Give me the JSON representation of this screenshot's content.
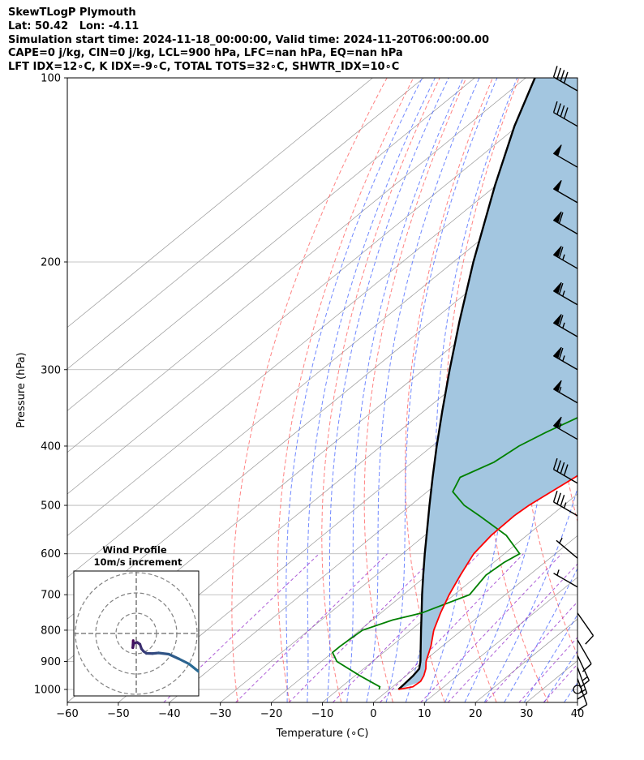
{
  "header": {
    "line1": "SkewTLogP Plymouth",
    "line2": "Lat: 50.42   Lon: -4.11",
    "line3": "Simulation start time: 2024-11-18_00:00:00, Valid time: 2024-11-20T06:00:00.00",
    "line4": "CAPE=0 j/kg, CIN=0 j/kg, LCL=900 hPa, LFC=nan hPa, EQ=nan hPa",
    "line5": "LFT IDX=12∘C, K IDX=-9∘C, TOTAL TOTS=32∘C, SHWTR_IDX=10∘C"
  },
  "chart_data": {
    "type": "line",
    "title": "SkewTLogP Plymouth",
    "xlabel": "Temperature (∘C)",
    "ylabel": "Pressure (hPa)",
    "xlim": [
      -60,
      40
    ],
    "ylim": [
      1050,
      100
    ],
    "yscale": "log",
    "x_ticks": [
      -60,
      -50,
      -40,
      -30,
      -20,
      -10,
      0,
      10,
      20,
      30,
      40
    ],
    "y_ticks": [
      100,
      200,
      300,
      400,
      500,
      600,
      700,
      800,
      900,
      1000
    ],
    "grid": true,
    "colors": {
      "temperature": "#ff0000",
      "dewpoint": "#008000",
      "parcel": "#000000",
      "fill": "#a3c6e0",
      "dry_adiabats": "#ff4d4d",
      "moist_adiabats": "#3355ff",
      "mixing_ratio": "#9933cc",
      "isotherms": "#999999",
      "hodograph": "#2a6b94"
    },
    "series": [
      {
        "name": "Temperature",
        "pressure": [
          1000,
          990,
          970,
          950,
          925,
          900,
          850,
          800,
          750,
          700,
          650,
          600,
          560,
          520,
          500,
          450,
          400,
          350,
          330,
          310,
          300,
          280,
          260,
          230,
          200,
          180,
          160,
          140,
          130,
          120,
          110,
          100
        ],
        "temperature": [
          1.8,
          4.0,
          4.2,
          3.5,
          2.2,
          0.5,
          -2.2,
          -5.5,
          -8.3,
          -11.0,
          -13.5,
          -16.0,
          -17.0,
          -17.2,
          -16.8,
          -14.5,
          -12.5,
          -11.5,
          -12.0,
          -13.0,
          -14.0,
          -16.0,
          -17.5,
          -17.0,
          -17.5,
          -16.0,
          -13.5,
          -11.0,
          -9.0,
          -7.0,
          -5.5,
          -4.0
        ]
      },
      {
        "name": "Dewpoint",
        "pressure": [
          1000,
          990,
          950,
          900,
          870,
          850,
          800,
          770,
          750,
          700,
          650,
          620,
          600,
          560,
          520,
          500,
          475,
          450,
          425,
          400,
          380,
          350,
          330,
          310,
          300,
          280,
          260,
          240,
          220,
          200,
          180,
          170,
          160,
          140,
          120,
          100
        ],
        "dewpoint": [
          -2.0,
          -2.5,
          -9.0,
          -17.0,
          -20.0,
          -20.0,
          -19.5,
          -16.0,
          -12.0,
          -7.0,
          -8.5,
          -8.0,
          -7.0,
          -14.0,
          -24.0,
          -29.5,
          -35.0,
          -37.0,
          -34.0,
          -33.0,
          -31.0,
          -27.0,
          -25.0,
          -20.5,
          -17.5,
          -19.0,
          -20.0,
          -24.0,
          -26.0,
          -27.0,
          -27.0,
          -26.0,
          -25.0,
          -21.0,
          -16.0,
          -12.0
        ]
      },
      {
        "name": "Parcel",
        "pressure": [
          1000,
          975,
          950,
          925,
          900,
          850,
          800,
          750,
          700,
          650,
          600,
          550,
          500,
          450,
          400,
          350,
          300,
          250,
          200,
          150,
          120,
          100
        ],
        "temperature": [
          1.8,
          1.6,
          1.4,
          0.9,
          -0.6,
          -4.2,
          -8.0,
          -12.0,
          -16.3,
          -20.8,
          -25.6,
          -30.7,
          -36.3,
          -42.4,
          -49.1,
          -56.5,
          -64.9,
          -74.6,
          -86.1,
          -100.2,
          -110.6,
          -118.2
        ]
      }
    ],
    "wind_barbs": [
      {
        "pressure": 1000,
        "speed_kt": 0,
        "direction_deg": 0
      },
      {
        "pressure": 960,
        "speed_kt": 10,
        "direction_deg": 160
      },
      {
        "pressure": 920,
        "speed_kt": 15,
        "direction_deg": 160
      },
      {
        "pressure": 880,
        "speed_kt": 15,
        "direction_deg": 155
      },
      {
        "pressure": 830,
        "speed_kt": 10,
        "direction_deg": 150
      },
      {
        "pressure": 750,
        "speed_kt": 10,
        "direction_deg": 145
      },
      {
        "pressure": 680,
        "speed_kt": 5,
        "direction_deg": 300
      },
      {
        "pressure": 610,
        "speed_kt": 5,
        "direction_deg": 310
      },
      {
        "pressure": 520,
        "speed_kt": 35,
        "direction_deg": 300
      },
      {
        "pressure": 460,
        "speed_kt": 40,
        "direction_deg": 300
      },
      {
        "pressure": 390,
        "speed_kt": 55,
        "direction_deg": 300
      },
      {
        "pressure": 340,
        "speed_kt": 55,
        "direction_deg": 300
      },
      {
        "pressure": 300,
        "speed_kt": 65,
        "direction_deg": 300
      },
      {
        "pressure": 265,
        "speed_kt": 65,
        "direction_deg": 300
      },
      {
        "pressure": 235,
        "speed_kt": 65,
        "direction_deg": 300
      },
      {
        "pressure": 205,
        "speed_kt": 65,
        "direction_deg": 300
      },
      {
        "pressure": 180,
        "speed_kt": 60,
        "direction_deg": 300
      },
      {
        "pressure": 160,
        "speed_kt": 50,
        "direction_deg": 300
      },
      {
        "pressure": 140,
        "speed_kt": 50,
        "direction_deg": 300
      },
      {
        "pressure": 120,
        "speed_kt": 40,
        "direction_deg": 300
      },
      {
        "pressure": 105,
        "speed_kt": 40,
        "direction_deg": 300
      }
    ],
    "hodograph": {
      "title": "Wind Profile",
      "subtitle": "10m/s increment",
      "rings_ms": [
        10,
        20,
        30
      ],
      "u": [
        -1.5,
        -1.6,
        -1.7,
        -1.2,
        0.5,
        1.8,
        2.6,
        3.6,
        5.0,
        8.0,
        11.0,
        16.0,
        21.0,
        26.0,
        31.0
      ],
      "v": [
        -3.5,
        -5.5,
        -7.0,
        -4.8,
        -4.4,
        -5.3,
        -7.6,
        -8.8,
        -9.8,
        -9.9,
        -9.6,
        -10.2,
        -12.5,
        -15.0,
        -19.0
      ]
    }
  }
}
